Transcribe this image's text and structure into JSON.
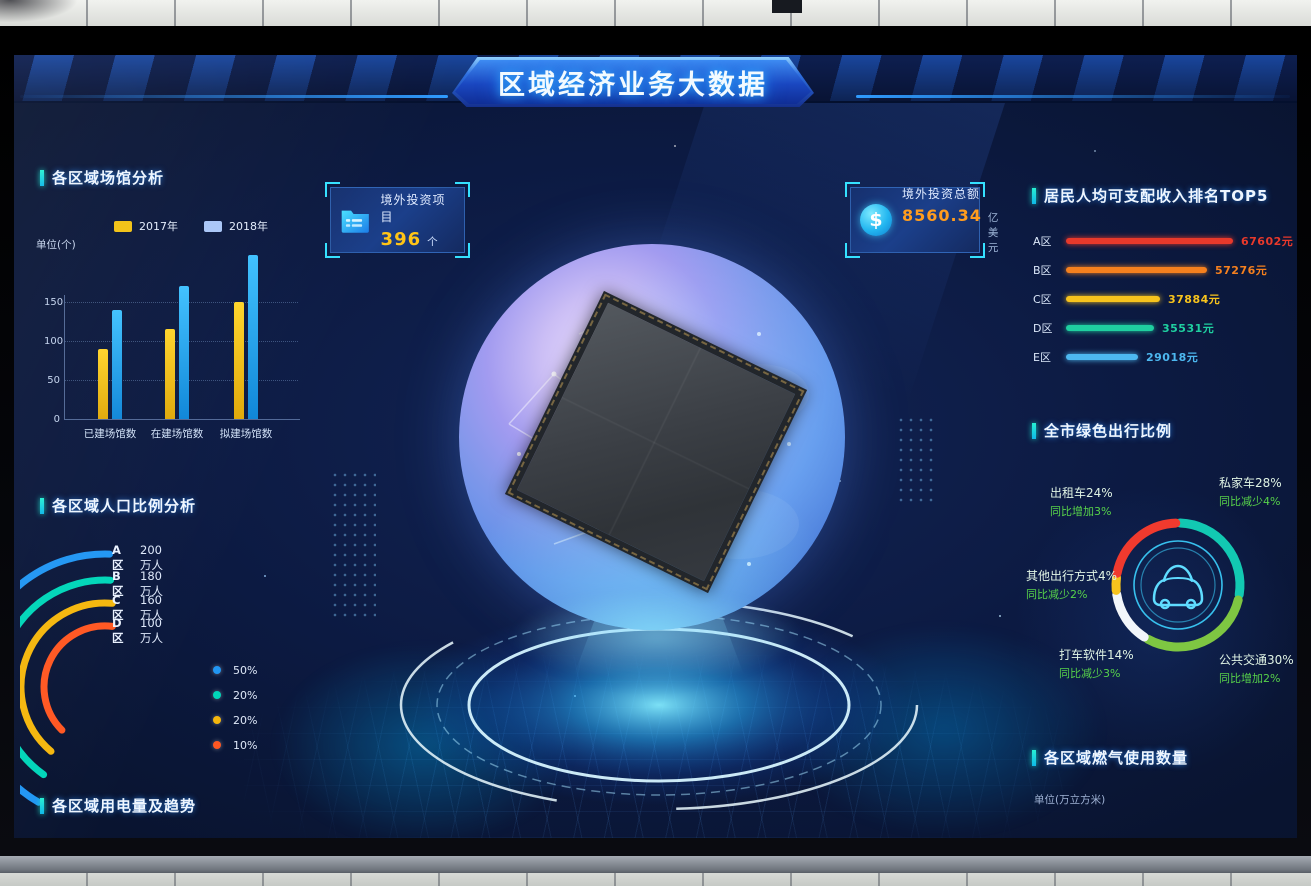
{
  "theme": {
    "bg": "#0c1a42",
    "accent_cyan": "#1ee8cc",
    "banner_blue": "#1c4fb0"
  },
  "header": {
    "title": "区域经济业务大数据"
  },
  "stat_boxes": [
    {
      "icon": "folder-icon",
      "label": "境外投资项目",
      "value": "396",
      "unit": "个",
      "value_color": "#ffc416"
    },
    {
      "icon": "dollar-icon",
      "label": "境外投资总额",
      "value": "8560.34",
      "unit": "亿美元",
      "value_color": "#ff9c1e"
    }
  ],
  "left": {
    "venues": {
      "title": "各区域场馆分析",
      "unit_label": "单位(个)",
      "legend": [
        {
          "label": "2017年",
          "color": "#f2c113"
        },
        {
          "label": "2018年",
          "color": "#a9c6f7"
        }
      ]
    },
    "population": {
      "title": "各区域人口比例分析",
      "rows": [
        {
          "label": "A区",
          "value": "200万人",
          "color": "#2196f3"
        },
        {
          "label": "B区",
          "value": "180万人",
          "color": "#00d6b9"
        },
        {
          "label": "C区",
          "value": "160万人",
          "color": "#f5b70d"
        },
        {
          "label": "D区",
          "value": "100万人",
          "color": "#ff5722"
        }
      ],
      "percent_legend": [
        {
          "label": "50%",
          "color": "#2196f3"
        },
        {
          "label": "20%",
          "color": "#00d6b9"
        },
        {
          "label": "20%",
          "color": "#f5b70d"
        },
        {
          "label": "10%",
          "color": "#ff5722"
        }
      ]
    },
    "electricity": {
      "title": "各区域用电量及趋势"
    }
  },
  "right": {
    "income": {
      "title": "居民人均可支配收入排名TOP5"
    },
    "green_travel": {
      "title": "全市绿色出行比例",
      "labels": [
        {
          "name": "出租车24%",
          "sub": "同比增加3%"
        },
        {
          "name": "私家车28%",
          "sub": "同比减少4%"
        },
        {
          "name": "其他出行方式4%",
          "sub": "同比减少2%"
        },
        {
          "name": "打车软件14%",
          "sub": "同比减少3%"
        },
        {
          "name": "公共交通30%",
          "sub": "同比增加2%"
        }
      ]
    },
    "gas": {
      "title": "各区域燃气使用数量",
      "unit_label": "单位(万立方米)"
    }
  },
  "chart_data": [
    {
      "type": "bar",
      "title": "各区域场馆分析",
      "ylabel": "单位(个)",
      "categories": [
        "已建场馆数",
        "在建场馆数",
        "拟建场馆数"
      ],
      "yticks": [
        0,
        50,
        100,
        150
      ],
      "ylim": [
        0,
        220
      ],
      "series": [
        {
          "name": "2017年",
          "color": "#e0a90a",
          "color_light": "#ffd42a",
          "values": [
            90,
            115,
            150
          ]
        },
        {
          "name": "2018年",
          "color": "#0f86d8",
          "color_light": "#3fc1ff",
          "values": [
            140,
            170,
            210
          ]
        }
      ]
    },
    {
      "type": "pie",
      "title": "各区域人口比例分析",
      "labels": [
        "A区",
        "B区",
        "C区",
        "D区"
      ],
      "values": [
        50,
        20,
        20,
        10
      ],
      "value_unit": "%",
      "absolute_labels": [
        "200万人",
        "180万人",
        "160万人",
        "100万人"
      ],
      "colors": [
        "#2196f3",
        "#00d6b9",
        "#f5b70d",
        "#ff5722"
      ]
    },
    {
      "type": "bar_horizontal",
      "title": "居民人均可支配收入排名TOP5",
      "categories": [
        "A区",
        "B区",
        "C区",
        "D区",
        "E区"
      ],
      "values": [
        67602,
        57276,
        37884,
        35531,
        29018
      ],
      "value_labels": [
        "67602元",
        "57276元",
        "37884元",
        "35531元",
        "29018元"
      ],
      "colors": [
        "#e8392b",
        "#f5801e",
        "#f7c31d",
        "#1fcfa0",
        "#4db8f0"
      ]
    },
    {
      "type": "pie",
      "title": "全市绿色出行比例",
      "center_icon": "car-icon",
      "slices": [
        {
          "label": "私家车",
          "value": 28,
          "yoy": "同比减少4%",
          "color": "#12c9b2"
        },
        {
          "label": "公共交通",
          "value": 30,
          "yoy": "同比增加2%",
          "color": "#7ec642"
        },
        {
          "label": "打车软件",
          "value": 14,
          "yoy": "同比减少3%",
          "color": "#f2f6fa"
        },
        {
          "label": "其他出行方式",
          "value": 4,
          "yoy": "同比减少2%",
          "color": "#f7c31d"
        },
        {
          "label": "出租车",
          "value": 24,
          "yoy": "同比增加3%",
          "color": "#f03a2e"
        }
      ]
    },
    {
      "type": "bar",
      "title": "各区域燃气使用数量",
      "ylabel": "单位(万立方米)",
      "categories": [],
      "values": []
    }
  ]
}
